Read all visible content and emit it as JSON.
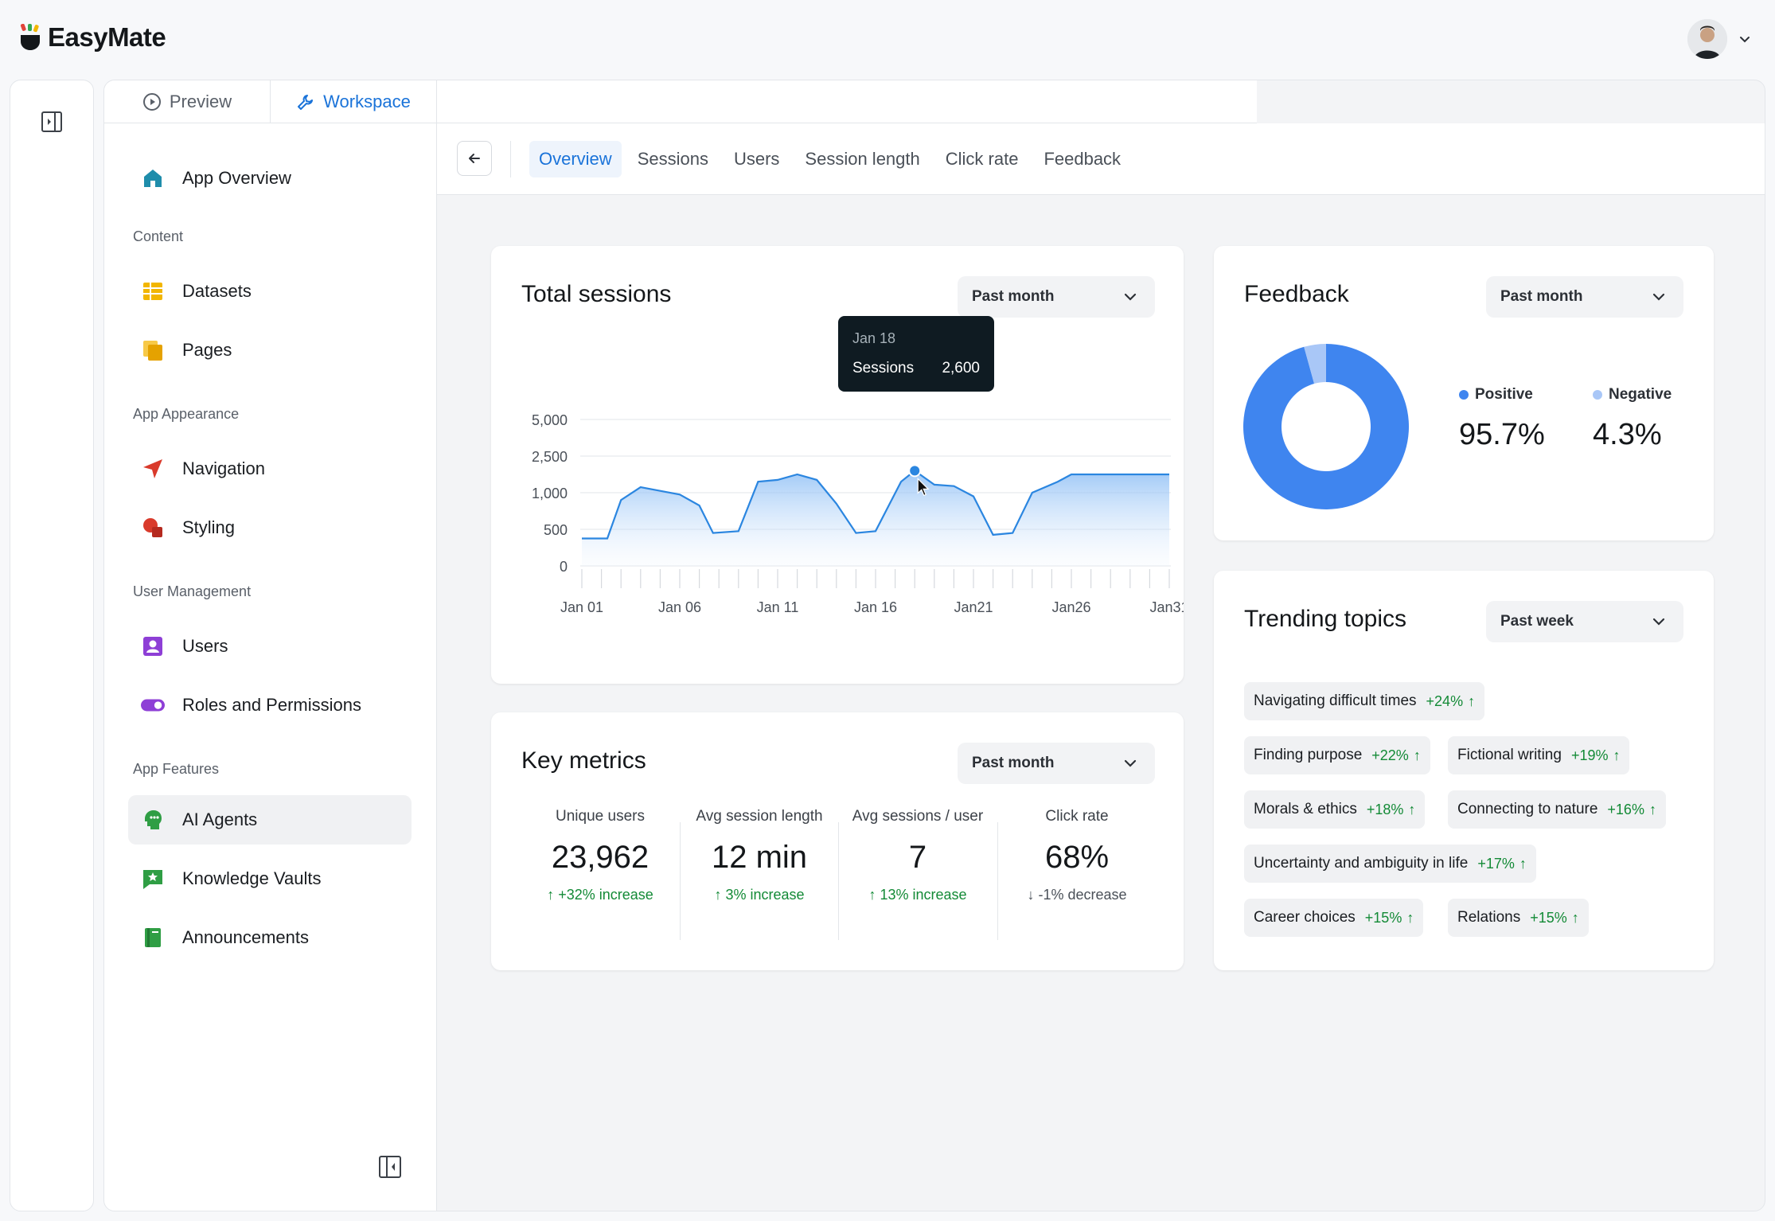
{
  "app": {
    "name": "EasyMate"
  },
  "mode_tabs": [
    {
      "label": "Preview",
      "icon": "play-circle-icon"
    },
    {
      "label": "Workspace",
      "icon": "wrench-icon"
    }
  ],
  "sidebar": {
    "overview": "App Overview",
    "sections": {
      "content": "Content",
      "appearance": "App Appearance",
      "users": "User Management",
      "features": "App Features"
    },
    "items": {
      "datasets": "Datasets",
      "pages": "Pages",
      "navigation": "Navigation",
      "styling": "Styling",
      "users": "Users",
      "roles": "Roles and Permissions",
      "ai_agents": "AI Agents",
      "knowledge": "Knowledge Vaults",
      "announcements": "Announcements"
    }
  },
  "content_tabs": [
    "Overview",
    "Sessions",
    "Users",
    "Session length",
    "Click rate",
    "Feedback"
  ],
  "sessions_card": {
    "title": "Total sessions",
    "period": "Past month",
    "tooltip": {
      "date": "Jan 18",
      "label": "Sessions",
      "value": "2,600"
    }
  },
  "chart_data": {
    "type": "area",
    "title": "Total sessions",
    "y_ticks": [
      "0",
      "500",
      "1,000",
      "2,500",
      "5,000"
    ],
    "x_ticks": [
      "Jan 01",
      "Jan 06",
      "Jan 11",
      "Jan 16",
      "Jan21",
      "Jan26",
      "Jan31"
    ],
    "x": [
      0,
      1.3,
      2,
      3,
      4,
      5,
      6,
      6.7,
      8,
      9,
      10,
      11,
      12,
      13,
      14,
      15,
      16.3,
      17,
      18,
      19,
      20,
      21,
      22,
      23,
      24.3,
      25,
      26,
      27,
      28,
      29,
      30
    ],
    "y_level": [
      0.75,
      0.75,
      1.8,
      2.15,
      2.05,
      1.95,
      1.65,
      0.9,
      0.95,
      2.3,
      2.35,
      2.5,
      2.35,
      1.7,
      0.9,
      0.95,
      2.3,
      2.6,
      2.22,
      2.18,
      1.9,
      0.85,
      0.9,
      2.0,
      2.3,
      2.5,
      2.5,
      2.5,
      2.5,
      2.5,
      2.5
    ],
    "level_scale_note_values": [
      0,
      500,
      1000,
      2500,
      5000
    ],
    "highlight": {
      "x": 17,
      "label": "Jan 18",
      "value": 2600
    },
    "grid": true,
    "legend": "none"
  },
  "metrics_card": {
    "title": "Key metrics",
    "period": "Past month",
    "items": [
      {
        "label": "Unique users",
        "value": "23,962",
        "delta": "+32% increase",
        "dir": "up"
      },
      {
        "label": "Avg session length",
        "value": "12 min",
        "delta": "3% increase",
        "dir": "up"
      },
      {
        "label": "Avg sessions / user",
        "value": "7",
        "delta": "13% increase",
        "dir": "up"
      },
      {
        "label": "Click rate",
        "value": "68%",
        "delta": "-1% decrease",
        "dir": "down"
      }
    ]
  },
  "feedback_card": {
    "title": "Feedback",
    "period": "Past month",
    "positive_label": "Positive",
    "positive_value": "95.7%",
    "negative_label": "Negative",
    "negative_value": "4.3%",
    "positive_fraction": 0.957,
    "colors": {
      "positive": "#3f85ef",
      "negative": "#a9c7f7"
    }
  },
  "topics_card": {
    "title": "Trending topics",
    "period": "Past week",
    "chips": [
      {
        "label": "Navigating difficult times",
        "delta": "+24%"
      },
      {
        "label": "Finding purpose",
        "delta": "+22%"
      },
      {
        "label": "Fictional writing",
        "delta": "+19%"
      },
      {
        "label": "Morals & ethics",
        "delta": "+18%"
      },
      {
        "label": "Connecting to nature",
        "delta": "+16%"
      },
      {
        "label": "Uncertainty and ambiguity in life",
        "delta": "+17%"
      },
      {
        "label": "Career choices",
        "delta": "+15%"
      },
      {
        "label": "Relations",
        "delta": "+15%"
      }
    ]
  }
}
